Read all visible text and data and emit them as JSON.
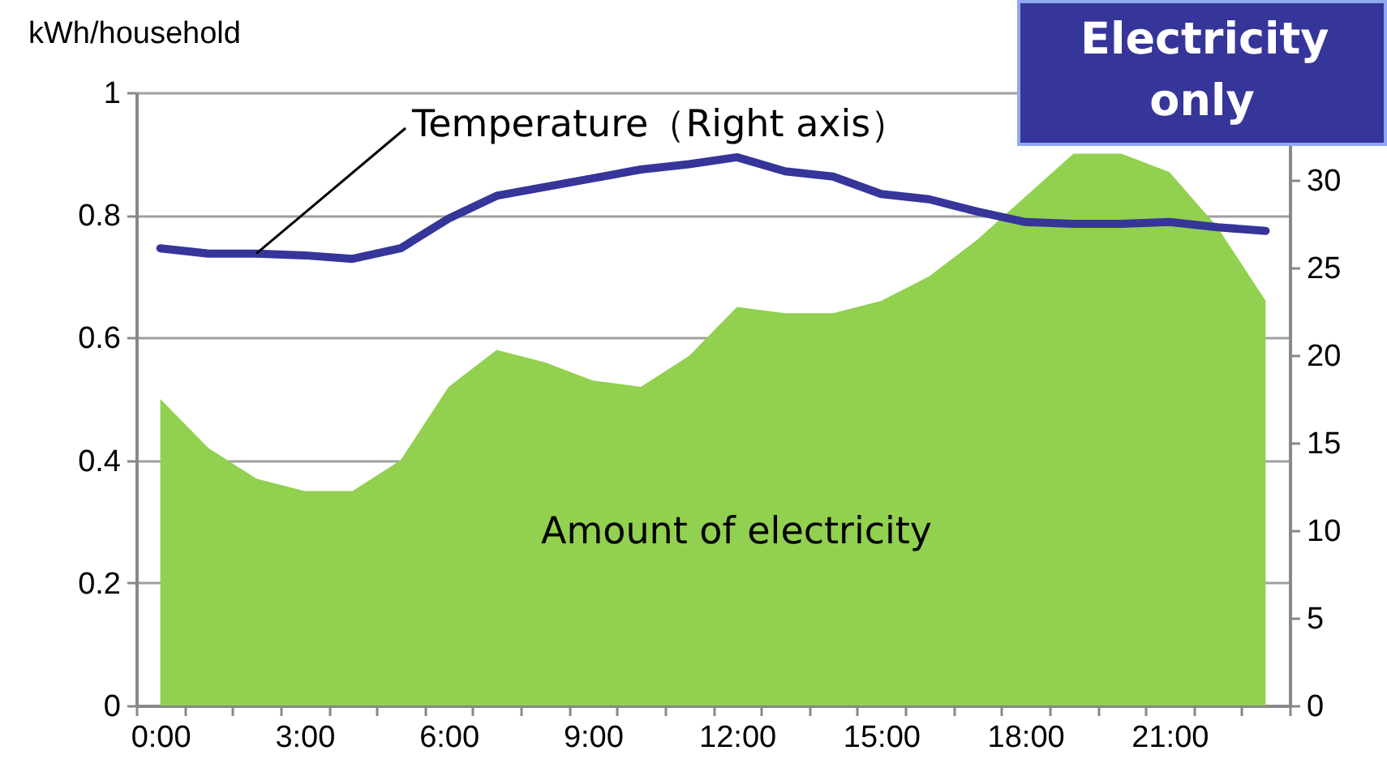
{
  "chart_data": {
    "type": "area",
    "ylabel": "kWh/household",
    "categories": [
      "0:00",
      null,
      null,
      "3:00",
      null,
      null,
      "6:00",
      null,
      null,
      "9:00",
      null,
      null,
      "12:00",
      null,
      null,
      "15:00",
      null,
      null,
      "18:00",
      null,
      null,
      "21:00",
      null,
      null
    ],
    "series": [
      {
        "name": "Amount of electricity",
        "color": "#92d050",
        "values": [
          0.5,
          0.42,
          0.37,
          0.35,
          0.35,
          0.4,
          0.52,
          0.58,
          0.56,
          0.53,
          0.52,
          0.57,
          0.65,
          0.64,
          0.64,
          0.66,
          0.7,
          0.76,
          0.83,
          0.9,
          0.9,
          0.87,
          0.78,
          0.66
        ]
      },
      {
        "name": "Temperature（Right axis）",
        "type": "line",
        "axis": "y2",
        "color": "#35359a",
        "values": [
          26.1,
          25.8,
          25.8,
          25.7,
          25.5,
          26.1,
          27.8,
          29.1,
          29.6,
          30.1,
          30.6,
          30.9,
          31.3,
          30.5,
          30.2,
          29.2,
          28.9,
          28.2,
          27.6,
          27.5,
          27.5,
          27.6,
          27.3,
          27.1
        ]
      }
    ],
    "ylim": [
      0,
      1
    ],
    "yticks": [
      0,
      0.2,
      0.4,
      0.6,
      0.8,
      1
    ],
    "y2lim": [
      0,
      35
    ],
    "y2ticks": [
      0,
      5,
      10,
      15,
      20,
      25,
      30
    ],
    "grid": "y",
    "annotations": [
      "Electricity only"
    ]
  }
}
